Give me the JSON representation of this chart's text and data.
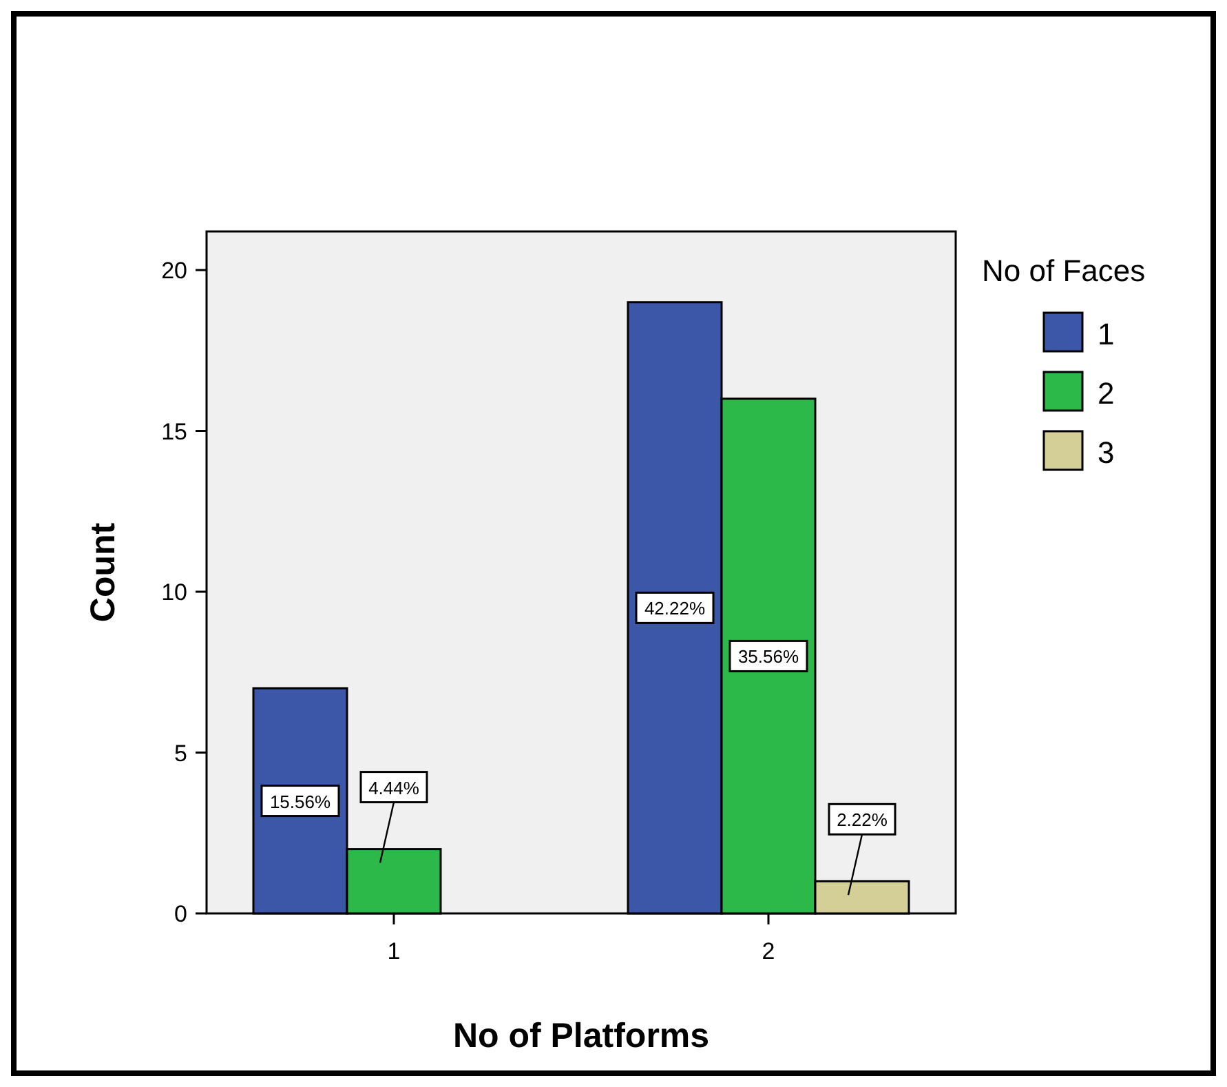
{
  "chart_data": {
    "type": "bar",
    "xlabel": "No of Platforms",
    "ylabel": "Count",
    "legend_title": "No of Faces",
    "legend": "top right",
    "categories": [
      "1",
      "2"
    ],
    "ylim": [
      0,
      21.2
    ],
    "yticks": [
      0,
      5,
      10,
      15,
      20
    ],
    "grid": false,
    "series": [
      {
        "name": "1",
        "color": "#3d57a8",
        "values": [
          7,
          19
        ]
      },
      {
        "name": "2",
        "color": "#2db84a",
        "values": [
          2,
          16
        ]
      },
      {
        "name": "3",
        "color": "#d4cf96",
        "values": [
          null,
          1
        ]
      }
    ],
    "annotations": [
      "15.56%",
      "42.22%",
      "4.44%",
      "35.56%",
      "2.22%"
    ]
  }
}
